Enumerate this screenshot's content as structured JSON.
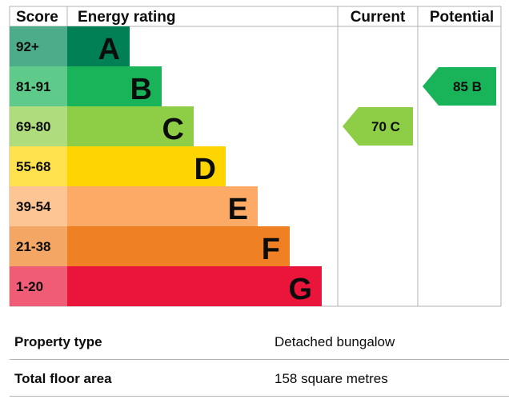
{
  "chart_data": {
    "type": "table",
    "title": "Energy rating",
    "columns": {
      "score": "Score",
      "rating": "Energy rating",
      "current": "Current",
      "potential": "Potential"
    },
    "bands": [
      {
        "score": "92+",
        "letter": "A",
        "color": "#008054",
        "score_bg": "#4dac8a",
        "bar_step": 1
      },
      {
        "score": "81-91",
        "letter": "B",
        "color": "#19b459",
        "score_bg": "#5fcb8b",
        "bar_step": 2
      },
      {
        "score": "69-80",
        "letter": "C",
        "color": "#8dce46",
        "score_bg": "#afdd7e",
        "bar_step": 3
      },
      {
        "score": "55-68",
        "letter": "D",
        "color": "#ffd500",
        "score_bg": "#ffe24d",
        "bar_step": 4
      },
      {
        "score": "39-54",
        "letter": "E",
        "color": "#fcaa65",
        "score_bg": "#fdc494",
        "bar_step": 5
      },
      {
        "score": "21-38",
        "letter": "F",
        "color": "#ef8023",
        "score_bg": "#f4a665",
        "bar_step": 6
      },
      {
        "score": "1-20",
        "letter": "G",
        "color": "#e9153b",
        "score_bg": "#f05b76",
        "bar_step": 7
      }
    ],
    "current": {
      "value": 70,
      "letter": "C",
      "label": "70  C",
      "color": "#8dce46"
    },
    "potential": {
      "value": 85,
      "letter": "B",
      "label": "85  B",
      "color": "#19b459"
    }
  },
  "colors": {
    "grid": "#b1b4b6",
    "text": "#0b0c0c"
  },
  "properties": {
    "property_type": {
      "label": "Property type",
      "value": "Detached bungalow"
    },
    "total_floor_area": {
      "label": "Total floor area",
      "value": "158 square metres"
    }
  }
}
